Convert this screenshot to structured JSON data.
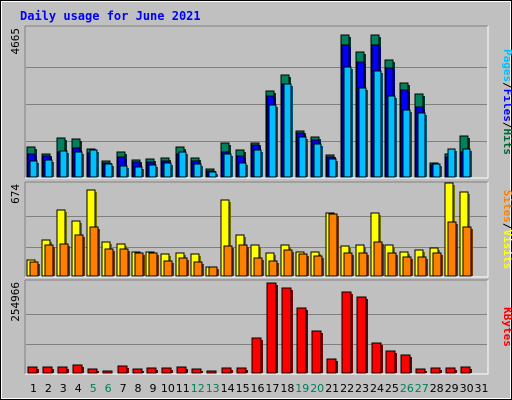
{
  "title": "Daily usage for June 2021",
  "panels": {
    "top": {
      "max_label": "4665",
      "side_label": [
        {
          "text": "Pages",
          "color": "#00c0ff"
        },
        {
          "text": "Files",
          "color": "#0000ff"
        },
        {
          "text": "Hits",
          "color": "#006633"
        }
      ]
    },
    "middle": {
      "max_label": "674",
      "side_label": [
        {
          "text": "Sites",
          "color": "#ff8000"
        },
        {
          "text": "Visits",
          "color": "#ffff00"
        }
      ]
    },
    "bottom": {
      "max_label": "254966",
      "side_label": [
        {
          "text": "KBytes",
          "color": "#ff0000"
        }
      ]
    }
  },
  "chart_data": {
    "type": "bar",
    "title": "Daily usage for June 2021",
    "categories": [
      "1",
      "2",
      "3",
      "4",
      "5",
      "6",
      "7",
      "8",
      "9",
      "10",
      "11",
      "12",
      "13",
      "14",
      "15",
      "16",
      "17",
      "18",
      "19",
      "20",
      "21",
      "22",
      "23",
      "24",
      "25",
      "26",
      "27",
      "28",
      "29",
      "30",
      "31"
    ],
    "weekend_days": [
      5,
      6,
      12,
      13,
      19,
      20,
      26,
      27
    ],
    "colors": {
      "hits": "#00805c",
      "files": "#0000ff",
      "pages": "#00c0ff",
      "visits": "#ffff00",
      "sites": "#ff8000",
      "kbytes": "#ff0000",
      "weekday_label": "#000000",
      "weekend_label": "#00805c",
      "title": "#0000ff",
      "panel_bg": "#c0c0c0"
    },
    "panels": [
      {
        "name": "hits_files_pages",
        "ylim": [
          0,
          4665
        ],
        "series": [
          {
            "name": "Hits",
            "key": "hits",
            "values": [
              950,
              730,
              1240,
              1190,
              880,
              520,
              790,
              540,
              560,
              610,
              960,
              600,
              250,
              1070,
              850,
              1070,
              2700,
              3230,
              1440,
              1260,
              700,
              4490,
              3950,
              4490,
              3690,
              2950,
              2610,
              450,
              730,
              1280,
              0
            ]
          },
          {
            "name": "Files",
            "key": "files",
            "values": [
              720,
              660,
              780,
              920,
              750,
              450,
              630,
              470,
              470,
              520,
              720,
              510,
              200,
              780,
              660,
              1010,
              2540,
              2920,
              1390,
              1170,
              620,
              4160,
              3610,
              4160,
              3440,
              2730,
              2210,
              390,
              630,
              780,
              0
            ]
          },
          {
            "name": "Pages",
            "key": "pages",
            "values": [
              520,
              540,
              830,
              780,
              840,
              420,
              350,
              310,
              390,
              440,
              790,
              420,
              170,
              720,
              450,
              860,
              2280,
              2930,
              1250,
              1040,
              560,
              3470,
              2790,
              3330,
              2560,
              2120,
              2030,
              420,
              880,
              890,
              0
            ]
          }
        ]
      },
      {
        "name": "visits_sites",
        "ylim": [
          0,
          674
        ],
        "series": [
          {
            "name": "Visits",
            "key": "visits",
            "values": [
              120,
              270,
              490,
              410,
              640,
              250,
              240,
              180,
              180,
              160,
              170,
              160,
              70,
              560,
              300,
              230,
              170,
              230,
              180,
              180,
              470,
              220,
              230,
              470,
              230,
              180,
              190,
              210,
              690,
              620,
              0
            ]
          },
          {
            "name": "Sites",
            "key": "sites",
            "values": [
              100,
              230,
              240,
              300,
              360,
              200,
              200,
              170,
              170,
              110,
              130,
              100,
              70,
              220,
              230,
              130,
              110,
              190,
              160,
              150,
              460,
              170,
              170,
              250,
              170,
              140,
              140,
              170,
              400,
              360,
              0
            ]
          }
        ]
      },
      {
        "name": "kbytes",
        "ylim": [
          0,
          254966
        ],
        "series": [
          {
            "name": "KBytes",
            "key": "kbytes",
            "values": [
              18000,
              18000,
              18000,
              22000,
              10000,
              7000,
              19000,
              11000,
              13000,
              14000,
              17000,
              11000,
              5000,
              14000,
              14000,
              100000,
              254966,
              240000,
              185000,
              120000,
              40000,
              230000,
              215000,
              85000,
              62000,
              50000,
              12000,
              14000,
              14000,
              18000,
              0
            ]
          }
        ]
      }
    ]
  }
}
